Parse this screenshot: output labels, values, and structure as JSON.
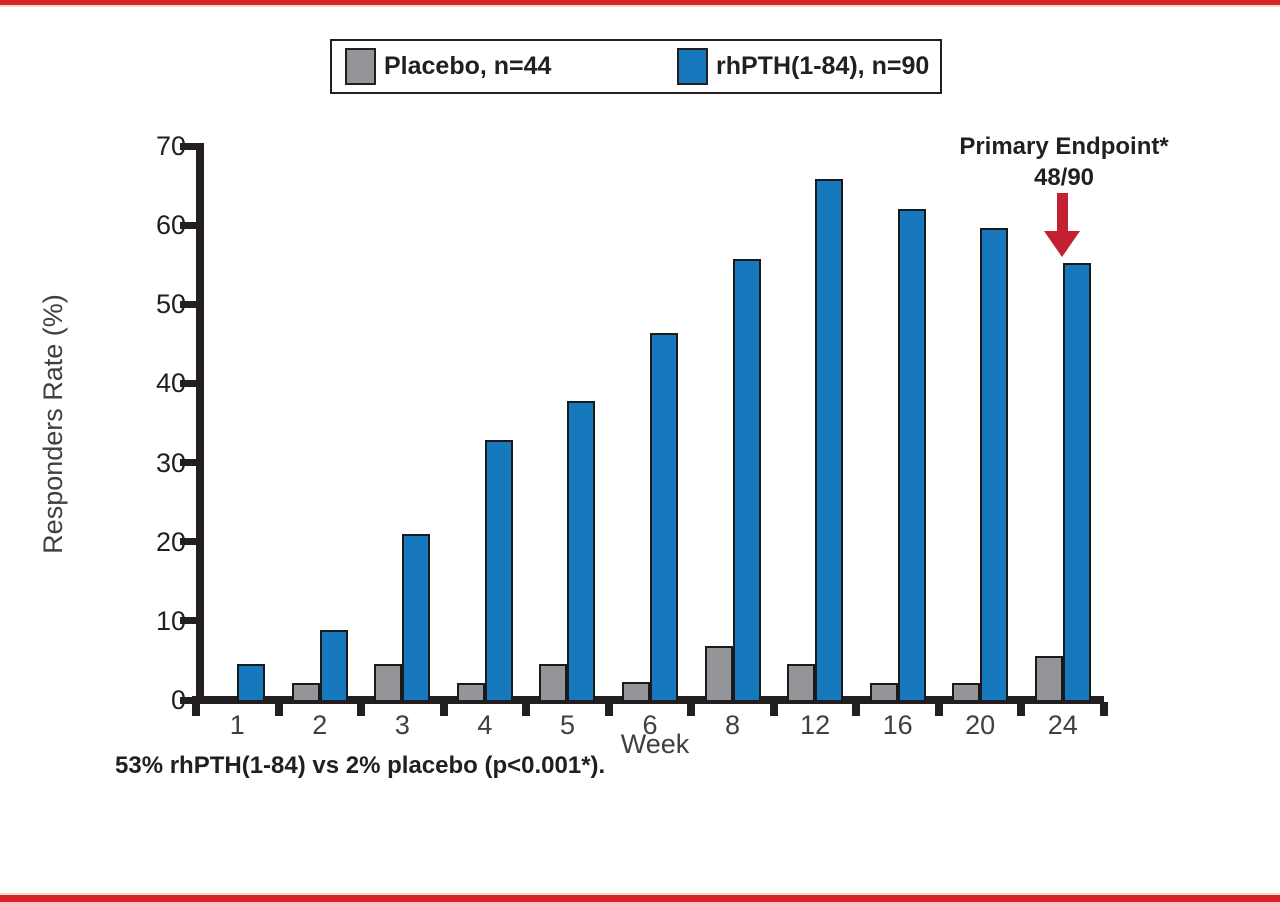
{
  "page": {
    "accent_red": "#d8232a"
  },
  "legend": {
    "items": [
      {
        "label": "Placebo, n=44",
        "color": "#939598"
      },
      {
        "label": "rhPTH(1-84), n=90",
        "color": "#1878be"
      }
    ]
  },
  "annotation": {
    "line1": "Primary Endpoint*",
    "line2": "48/90",
    "arrow_color": "#c32032"
  },
  "footnote": "53% rhPTH(1-84) vs 2% placebo (p<0.001*).",
  "chart_data": {
    "type": "bar",
    "categories": [
      "1",
      "2",
      "3",
      "4",
      "5",
      "6",
      "8",
      "12",
      "16",
      "20",
      "24"
    ],
    "series": [
      {
        "name": "Placebo, n=44",
        "color": "#939598",
        "values": [
          0,
          2.2,
          4.5,
          2.2,
          4.5,
          2.3,
          6.8,
          4.5,
          2.2,
          2.2,
          5.5
        ]
      },
      {
        "name": "rhPTH(1-84), n=90",
        "color": "#1878be",
        "values": [
          4.5,
          8.8,
          21.0,
          32.9,
          37.8,
          46.4,
          55.7,
          65.8,
          62.1,
          59.7,
          55.2
        ]
      }
    ],
    "title": "",
    "xlabel": "Week",
    "ylabel": "Responders Rate (%)",
    "ylim": [
      0,
      70
    ],
    "yticks": [
      0,
      10,
      20,
      30,
      40,
      50,
      60,
      70
    ],
    "grid": false,
    "legend_position": "top-center",
    "bar_outline_color": "#1a1a1a"
  }
}
